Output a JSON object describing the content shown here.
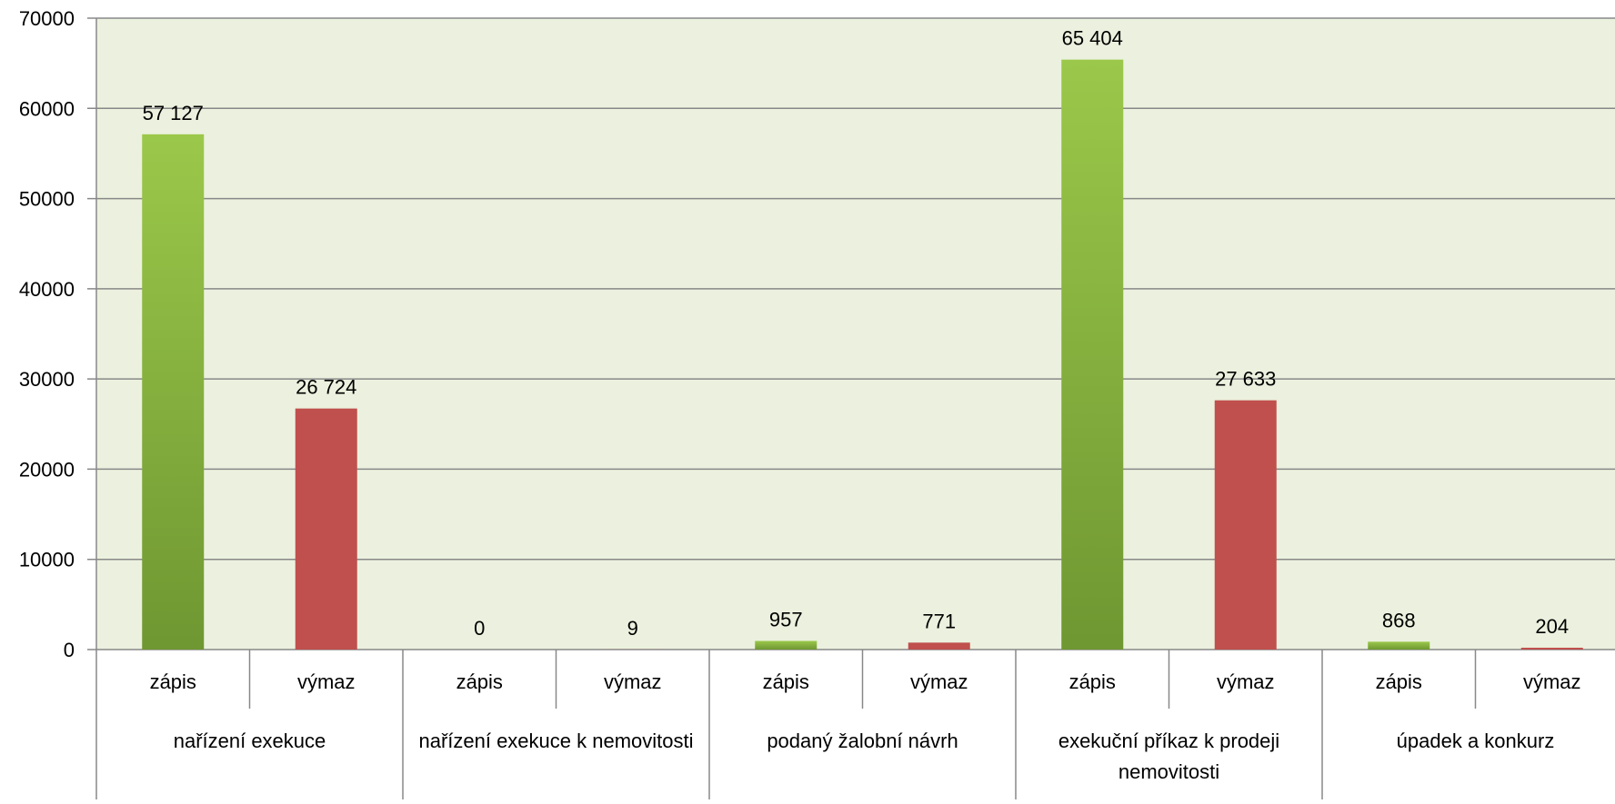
{
  "chart_data": {
    "type": "bar",
    "title": "",
    "xlabel": "",
    "ylabel": "",
    "ylim": [
      0,
      70000
    ],
    "yticks": [
      0,
      10000,
      20000,
      30000,
      40000,
      50000,
      60000,
      70000
    ],
    "grid": true,
    "groups": [
      {
        "label": "nařízení exekuce",
        "label_lines": [
          "nařízení exekuce"
        ]
      },
      {
        "label": "nařízení exekuce k nemovitosti",
        "label_lines": [
          "nařízení exekuce k nemovitosti"
        ]
      },
      {
        "label": "podaný žalobní návrh",
        "label_lines": [
          "podaný žalobní návrh"
        ]
      },
      {
        "label": "exekuční příkaz k prodeji nemovitosti",
        "label_lines": [
          "exekuční příkaz k prodeji",
          "nemovitosti"
        ]
      },
      {
        "label": "úpadek a konkurz",
        "label_lines": [
          "úpadek a konkurz"
        ]
      }
    ],
    "categories": [
      {
        "group": 0,
        "label": "zápis",
        "value": 57127,
        "value_label": "57 127",
        "color": "green"
      },
      {
        "group": 0,
        "label": "výmaz",
        "value": 26724,
        "value_label": "26 724",
        "color": "red"
      },
      {
        "group": 1,
        "label": "zápis",
        "value": 0,
        "value_label": "0",
        "color": "green"
      },
      {
        "group": 1,
        "label": "výmaz",
        "value": 9,
        "value_label": "9",
        "color": "red"
      },
      {
        "group": 2,
        "label": "zápis",
        "value": 957,
        "value_label": "957",
        "color": "green"
      },
      {
        "group": 2,
        "label": "výmaz",
        "value": 771,
        "value_label": "771",
        "color": "red"
      },
      {
        "group": 3,
        "label": "zápis",
        "value": 65404,
        "value_label": "65 404",
        "color": "green"
      },
      {
        "group": 3,
        "label": "výmaz",
        "value": 27633,
        "value_label": "27 633",
        "color": "red"
      },
      {
        "group": 4,
        "label": "zápis",
        "value": 868,
        "value_label": "868",
        "color": "green"
      },
      {
        "group": 4,
        "label": "výmaz",
        "value": 204,
        "value_label": "204",
        "color": "red"
      }
    ],
    "colors": {
      "plot_background": "#ebf1de",
      "green_top": "#9bc84a",
      "green_bottom": "#6f9732",
      "red": "#c0504d",
      "gridline": "#888888"
    }
  }
}
